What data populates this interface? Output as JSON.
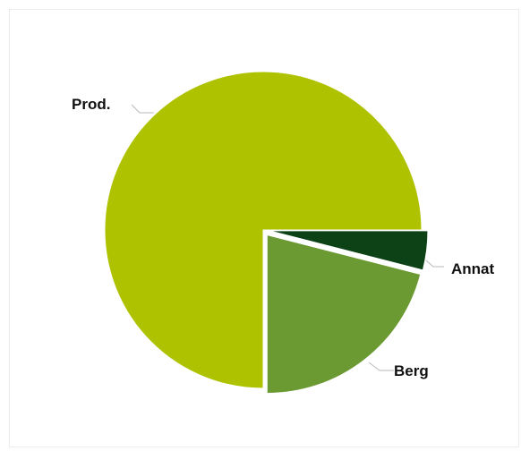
{
  "chart_data": {
    "type": "pie",
    "title": "",
    "slices": [
      {
        "label": "Prod.",
        "value": 75,
        "color": "#afc200"
      },
      {
        "label": "Berg",
        "value": 21,
        "color": "#6b9932"
      },
      {
        "label": "Annat",
        "value": 4,
        "color": "#0c4216"
      }
    ],
    "start_angle_deg": 0,
    "direction": "counter-clockwise",
    "exploded": "Berg, Annat",
    "legend": "none",
    "data_labels": "outside-with-leader-lines"
  }
}
